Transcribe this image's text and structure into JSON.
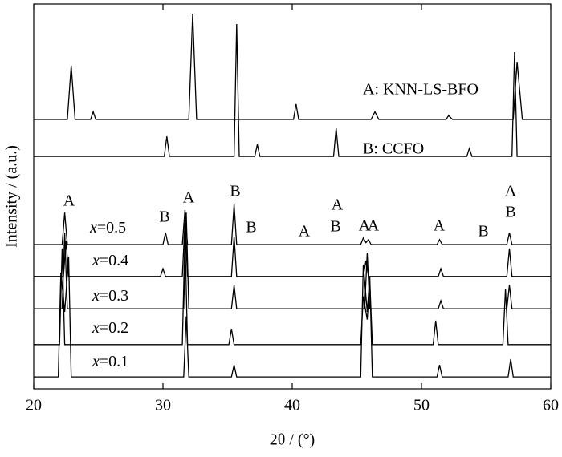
{
  "chart_data": {
    "type": "line",
    "xlabel": "2θ / (°)",
    "ylabel": "Intensity / (a.u.)",
    "xlim": [
      20,
      60
    ],
    "xticks": [
      20,
      30,
      40,
      50,
      60
    ],
    "ylim": [
      0,
      100
    ],
    "series": [
      {
        "color": "#000000",
        "x": [
          20,
          22.6,
          22.9,
          23.2,
          24.4,
          24.6,
          24.8,
          32.0,
          32.3,
          32.6,
          40.1,
          40.3,
          40.5,
          46.1,
          46.4,
          46.7,
          51.9,
          52.1,
          52.4,
          57.1,
          57.4,
          57.8,
          60
        ],
        "values": [
          70,
          70,
          84,
          70,
          70,
          72,
          70,
          70,
          97.5,
          70,
          70,
          74,
          70,
          70,
          72,
          70,
          70,
          71,
          70,
          70,
          85,
          70,
          70
        ]
      },
      {
        "color": "#000000",
        "x": [
          20,
          30.1,
          30.3,
          30.5,
          35.5,
          35.7,
          35.9,
          37.1,
          37.3,
          37.5,
          43.2,
          43.4,
          43.6,
          53.5,
          53.7,
          53.9,
          57.0,
          57.2,
          57.4,
          60
        ],
        "values": [
          60.4,
          60.4,
          65.6,
          60.4,
          60.4,
          94.8,
          60.4,
          60.4,
          63.5,
          60.4,
          60.4,
          67.7,
          60.4,
          60.4,
          62.5,
          60.4,
          60.4,
          87.5,
          60.4,
          60.4
        ]
      },
      {
        "color": "#000000",
        "x": [
          20,
          22.2,
          22.4,
          22.6,
          30.0,
          30.2,
          30.4,
          31.5,
          31.7,
          31.9,
          35.3,
          35.5,
          35.7,
          45.3,
          45.5,
          45.7,
          45.9,
          46.1,
          51.2,
          51.4,
          51.6,
          56.6,
          56.8,
          57.0,
          60
        ],
        "values": [
          37.5,
          37.5,
          45.8,
          37.5,
          37.5,
          40.6,
          37.5,
          37.5,
          46.5,
          37.5,
          37.5,
          47.9,
          37.5,
          37.5,
          39.2,
          38,
          38.8,
          37.5,
          37.5,
          38.8,
          37.5,
          37.5,
          40.6,
          37.5,
          37.5
        ]
      },
      {
        "color": "#000000",
        "x": [
          20,
          22.3,
          22.5,
          22.7,
          29.8,
          30.0,
          30.2,
          31.5,
          31.7,
          31.9,
          35.3,
          35.5,
          35.7,
          45.5,
          45.7,
          45.9,
          51.3,
          51.5,
          51.7,
          56.6,
          56.8,
          57.0,
          60
        ],
        "values": [
          29.2,
          29.2,
          38.5,
          29.2,
          29.2,
          31.2,
          29.2,
          29.2,
          43.8,
          29.2,
          29.2,
          39.6,
          29.2,
          29.2,
          33.3,
          29.2,
          29.2,
          31.2,
          29.2,
          29.2,
          36.5,
          29.2,
          29.2
        ]
      },
      {
        "color": "#000000",
        "x": [
          20,
          22.2,
          22.4,
          22.6,
          31.6,
          31.8,
          32.0,
          35.3,
          35.5,
          35.7,
          45.6,
          45.8,
          46.0,
          51.3,
          51.5,
          51.7,
          56.6,
          56.8,
          57.0,
          60
        ],
        "values": [
          20.8,
          20.8,
          40.6,
          20.8,
          20.8,
          45.8,
          20.8,
          20.8,
          27,
          20.8,
          20.8,
          35.4,
          20.8,
          20.8,
          22.9,
          20.8,
          20.8,
          27,
          20.8,
          20.8
        ]
      },
      {
        "color": "#000000",
        "x": [
          20,
          22.0,
          22.2,
          22.4,
          31.5,
          31.7,
          31.9,
          35.1,
          35.3,
          35.5,
          45.3,
          45.5,
          45.8,
          46.0,
          46.2,
          50.9,
          51.1,
          51.3,
          56.3,
          56.5,
          56.7,
          60
        ],
        "values": [
          11.5,
          11.5,
          36.5,
          11.5,
          11.5,
          40.6,
          11.5,
          11.5,
          15.6,
          11.5,
          11.5,
          24,
          18,
          28,
          11.5,
          11.5,
          17.7,
          11.5,
          11.5,
          26,
          11.5,
          11.5
        ]
      },
      {
        "color": "#000000",
        "x": [
          20,
          21.9,
          22.1,
          22.4,
          22.7,
          22.9,
          31.6,
          31.8,
          32.0,
          35.3,
          35.5,
          35.7,
          45.3,
          45.5,
          45.8,
          46.0,
          46.2,
          51.2,
          51.4,
          51.6,
          56.7,
          56.9,
          57.1,
          60
        ],
        "values": [
          3.1,
          3.1,
          30.2,
          20,
          34.4,
          3.1,
          3.1,
          18.8,
          3.1,
          3.1,
          6.2,
          3.1,
          3.1,
          32.3,
          20,
          29.2,
          3.1,
          3.1,
          6.2,
          3.1,
          3.1,
          7.7,
          3.1,
          3.1
        ]
      }
    ],
    "annotations": [
      "A: KNN-LS-BFO",
      "B: CCFO",
      "x=0.5",
      "x=0.4",
      "x=0.3",
      "x=0.2",
      "x=0.1",
      "A",
      "B",
      "A",
      "B",
      "B",
      "A",
      "A",
      "B",
      "A",
      "A",
      "A",
      "B",
      "A",
      "B"
    ]
  }
}
